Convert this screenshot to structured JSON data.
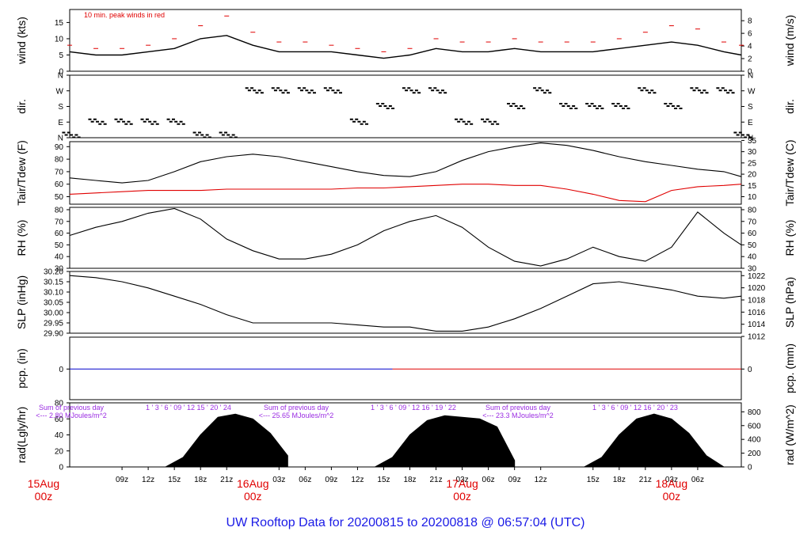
{
  "page": {
    "title": "UW Rooftop Data for 20200815  to  20200818 @ 06:57:04  (UTC)"
  },
  "colors": {
    "title": "#1a1ae6",
    "wind_peak": "#e00000",
    "tdew": "#e00000",
    "pcp_line_a": "#0000cc",
    "pcp_line_b": "#e00000",
    "date": "#e00000",
    "rad_note": "#9a2be2",
    "series": "#000000"
  },
  "time_axis": {
    "hour_labels": [
      "09z",
      "12z",
      "15z",
      "18z",
      "21z",
      "03z",
      "06z",
      "09z",
      "12z",
      "15z",
      "18z",
      "21z",
      "03z",
      "06z",
      "09z",
      "12z",
      "15z",
      "18z",
      "21z",
      "03z",
      "06z"
    ],
    "date_labels": [
      {
        "date": "15Aug",
        "hour": "00z"
      },
      {
        "date": "16Aug",
        "hour": "00z"
      },
      {
        "date": "17Aug",
        "hour": "00z"
      },
      {
        "date": "18Aug",
        "hour": "00z"
      }
    ]
  },
  "panels": {
    "wind": {
      "left_label": "wind (kts)",
      "right_label": "wind (m/s)",
      "left_ticks": [
        "0",
        "5",
        "10",
        "15"
      ],
      "right_ticks": [
        "0",
        "2",
        "4",
        "6",
        "8"
      ],
      "note": "10 min. peak winds in red"
    },
    "dir": {
      "left_label": "dir.",
      "right_label": "dir.",
      "ticks": [
        "N",
        "E",
        "S",
        "W",
        "N"
      ]
    },
    "temp": {
      "left_label": "Tair/Tdew (F)",
      "right_label": "Tair/Tdew (C)",
      "left_ticks": [
        "50",
        "60",
        "70",
        "80",
        "90"
      ],
      "right_ticks": [
        "10",
        "15",
        "20",
        "25",
        "30",
        "35"
      ]
    },
    "rh": {
      "left_label": "RH (%)",
      "right_label": "RH (%)",
      "ticks": [
        "30",
        "40",
        "50",
        "60",
        "70",
        "80"
      ]
    },
    "slp": {
      "left_label": "SLP (inHg)",
      "right_label": "SLP (hPa)",
      "left_ticks": [
        "29.90",
        "29.95",
        "30.00",
        "30.05",
        "30.10",
        "30.15",
        "30.20"
      ],
      "right_ticks": [
        "1012",
        "1014",
        "1016",
        "1018",
        "1020",
        "1022"
      ]
    },
    "pcp": {
      "left_label": "pcp. (in)",
      "right_label": "pcp. (mm)",
      "left_tick": "0",
      "right_tick": "0"
    },
    "rad": {
      "left_label": "rad(Lgly/hr)",
      "right_label": "rad (W/m^2)",
      "left_ticks": [
        "0",
        "20",
        "40",
        "60",
        "80"
      ],
      "right_ticks": [
        "0",
        "200",
        "400",
        "600",
        "800"
      ],
      "annotations": [
        {
          "sum_label": "Sum of previous day",
          "value_label": "<--- 2.80 MJoules/m^2",
          "hours_label": "1 ' 3 ' 6 ' 09 ' 12 15 ' 20 ' 24"
        },
        {
          "sum_label": "Sum of previous day",
          "value_label": "<--- 25.65 MJoules/m^2",
          "hours_label": "1 ' 3 ' 6 ' 09 ' 12 16 ' 19 ' 22"
        },
        {
          "sum_label": "Sum of previous day",
          "value_label": "<--- 23.3 MJoules/m^2",
          "hours_label": "1 ' 3 ' 6 ' 09 ' 12 16 ' 20 ' 23"
        }
      ]
    }
  },
  "chart_data": [
    {
      "type": "line",
      "panel": "wind",
      "xlabel": "",
      "ylabel": "wind (kts)",
      "ylim": [
        0,
        19
      ],
      "x_unit": "hours since 2020-08-15 00z",
      "x": [
        3,
        6,
        9,
        12,
        15,
        18,
        21,
        24,
        27,
        30,
        33,
        36,
        39,
        42,
        45,
        48,
        51,
        54,
        57,
        60,
        63,
        66,
        69,
        72,
        75,
        78,
        80
      ],
      "series": [
        {
          "values": [
            6,
            5,
            5,
            6,
            7,
            10,
            11,
            8,
            6,
            6,
            6,
            5,
            4,
            5,
            7,
            6,
            6,
            7,
            6,
            6,
            6,
            7,
            8,
            9,
            8,
            6,
            5
          ]
        },
        {
          "name": "10 min. peak winds in red",
          "values": [
            8,
            7,
            7,
            8,
            10,
            14,
            17,
            12,
            9,
            9,
            8,
            7,
            6,
            7,
            10,
            9,
            9,
            10,
            9,
            9,
            9,
            10,
            12,
            14,
            13,
            9,
            8
          ]
        }
      ]
    },
    {
      "type": "scatter",
      "panel": "dir",
      "ylabel": "dir.",
      "y_categories": [
        "N",
        "E",
        "S",
        "W",
        "N"
      ],
      "x_unit": "hours since 2020-08-15 00z",
      "x": [
        3,
        6,
        9,
        12,
        15,
        18,
        21,
        24,
        27,
        30,
        33,
        36,
        39,
        42,
        45,
        48,
        51,
        54,
        57,
        60,
        63,
        66,
        69,
        72,
        75,
        78,
        80
      ],
      "directions": [
        "N",
        "E",
        "E",
        "E",
        "E",
        "N",
        "N",
        "W",
        "W",
        "W",
        "W",
        "E",
        "S",
        "W",
        "W",
        "E",
        "E",
        "S",
        "W",
        "S",
        "S",
        "S",
        "W",
        "S",
        "W",
        "W",
        "N"
      ]
    },
    {
      "type": "line",
      "panel": "temp",
      "ylabel": "Tair/Tdew (F)",
      "ylim": [
        44,
        94
      ],
      "x_unit": "hours since 2020-08-15 00z",
      "x": [
        3,
        6,
        9,
        12,
        15,
        18,
        21,
        24,
        27,
        30,
        33,
        36,
        39,
        42,
        45,
        48,
        51,
        54,
        57,
        60,
        63,
        66,
        69,
        72,
        75,
        78,
        80
      ],
      "series": [
        {
          "values": [
            65,
            63,
            61,
            63,
            70,
            78,
            82,
            84,
            82,
            78,
            74,
            70,
            67,
            66,
            70,
            79,
            86,
            90,
            93,
            91,
            87,
            82,
            78,
            75,
            72,
            70,
            66
          ]
        },
        {
          "values": [
            52,
            53,
            54,
            55,
            55,
            55,
            56,
            56,
            56,
            56,
            56,
            57,
            57,
            58,
            59,
            60,
            60,
            59,
            59,
            56,
            52,
            47,
            46,
            55,
            58,
            59,
            60
          ]
        }
      ]
    },
    {
      "type": "line",
      "panel": "rh",
      "ylabel": "RH (%)",
      "ylim": [
        30,
        82
      ],
      "x_unit": "hours since 2020-08-15 00z",
      "x": [
        3,
        6,
        9,
        12,
        15,
        18,
        21,
        24,
        27,
        30,
        33,
        36,
        39,
        42,
        45,
        48,
        51,
        54,
        57,
        60,
        63,
        66,
        69,
        72,
        75,
        78,
        80
      ],
      "values": [
        58,
        65,
        70,
        77,
        81,
        72,
        55,
        45,
        38,
        38,
        42,
        50,
        62,
        70,
        75,
        65,
        48,
        36,
        32,
        38,
        48,
        40,
        36,
        48,
        78,
        60,
        50
      ]
    },
    {
      "type": "line",
      "panel": "slp",
      "ylabel": "SLP (inHg)",
      "ylim": [
        29.9,
        30.2
      ],
      "x_unit": "hours since 2020-08-15 00z",
      "x": [
        3,
        6,
        9,
        12,
        15,
        18,
        21,
        24,
        27,
        30,
        33,
        36,
        39,
        42,
        45,
        48,
        51,
        54,
        57,
        60,
        63,
        66,
        69,
        72,
        75,
        78,
        80
      ],
      "values": [
        30.18,
        30.17,
        30.15,
        30.12,
        30.08,
        30.04,
        29.99,
        29.95,
        29.95,
        29.95,
        29.95,
        29.94,
        29.93,
        29.93,
        29.91,
        29.91,
        29.93,
        29.97,
        30.02,
        30.08,
        30.14,
        30.15,
        30.13,
        30.11,
        30.08,
        30.07,
        30.08
      ]
    },
    {
      "type": "line",
      "panel": "pcp",
      "ylabel": "pcp. (in)",
      "x_unit": "hours since 2020-08-15 00z",
      "x": [
        3,
        40,
        80
      ],
      "values": [
        0,
        0,
        0
      ]
    },
    {
      "type": "area",
      "panel": "rad",
      "ylabel": "rad(Lgly/hr)",
      "ylim": [
        0,
        80
      ],
      "x_unit": "hours since 2020-08-15 00z",
      "x": [
        14,
        16,
        18,
        20,
        22,
        24,
        26,
        28,
        38,
        40,
        42,
        44,
        46,
        48,
        50,
        52,
        54,
        62,
        64,
        66,
        68,
        70,
        72,
        74,
        76,
        78
      ],
      "values": [
        0,
        12,
        40,
        62,
        66,
        60,
        42,
        14,
        0,
        12,
        40,
        58,
        64,
        62,
        60,
        50,
        8,
        0,
        12,
        40,
        60,
        66,
        60,
        42,
        14,
        0
      ]
    }
  ]
}
